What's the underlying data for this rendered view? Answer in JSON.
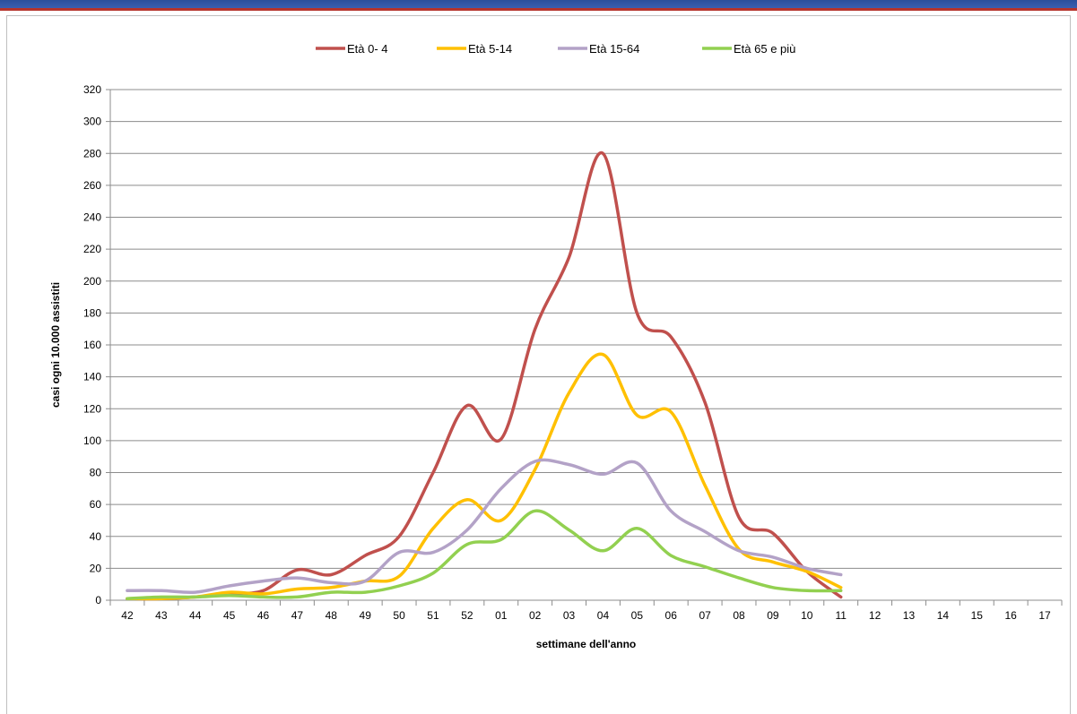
{
  "chart_data": {
    "type": "line",
    "title": "",
    "xlabel": "settimane dell'anno",
    "ylabel": "casi ogni 10.000 assistiti",
    "ylim": [
      0,
      320
    ],
    "ytick_step": 20,
    "grid": "horizontal",
    "legend_position": "top",
    "categories": [
      "42",
      "43",
      "44",
      "45",
      "46",
      "47",
      "48",
      "49",
      "50",
      "51",
      "52",
      "01",
      "02",
      "03",
      "04",
      "05",
      "06",
      "07",
      "08",
      "09",
      "10",
      "11",
      "12",
      "13",
      "14",
      "15",
      "16",
      "17"
    ],
    "series": [
      {
        "name": "Età  0- 4",
        "color": "#c0504d",
        "values": [
          1,
          1,
          2,
          4,
          6,
          19,
          16,
          28,
          40,
          80,
          122,
          101,
          170,
          215,
          280,
          180,
          165,
          124,
          52,
          42,
          18,
          2,
          null,
          null,
          null,
          null,
          null,
          null
        ]
      },
      {
        "name": "Età  5-14",
        "color": "#ffc000",
        "values": [
          1,
          1,
          2,
          5,
          4,
          7,
          8,
          12,
          15,
          45,
          63,
          50,
          82,
          130,
          154,
          116,
          118,
          72,
          32,
          24,
          18,
          8,
          null,
          null,
          null,
          null,
          null,
          null
        ]
      },
      {
        "name": "Età 15-64",
        "color": "#b3a2c7",
        "values": [
          6,
          6,
          5,
          9,
          12,
          14,
          11,
          12,
          30,
          30,
          44,
          70,
          87,
          85,
          79,
          86,
          56,
          43,
          31,
          27,
          20,
          16,
          null,
          null,
          null,
          null,
          null,
          null
        ]
      },
      {
        "name": "Età 65 e più",
        "color": "#92d050",
        "values": [
          1,
          2,
          2,
          3,
          2,
          2,
          5,
          5,
          9,
          17,
          35,
          38,
          56,
          44,
          31,
          45,
          28,
          21,
          14,
          8,
          6,
          6,
          null,
          null,
          null,
          null,
          null,
          null
        ]
      }
    ]
  }
}
